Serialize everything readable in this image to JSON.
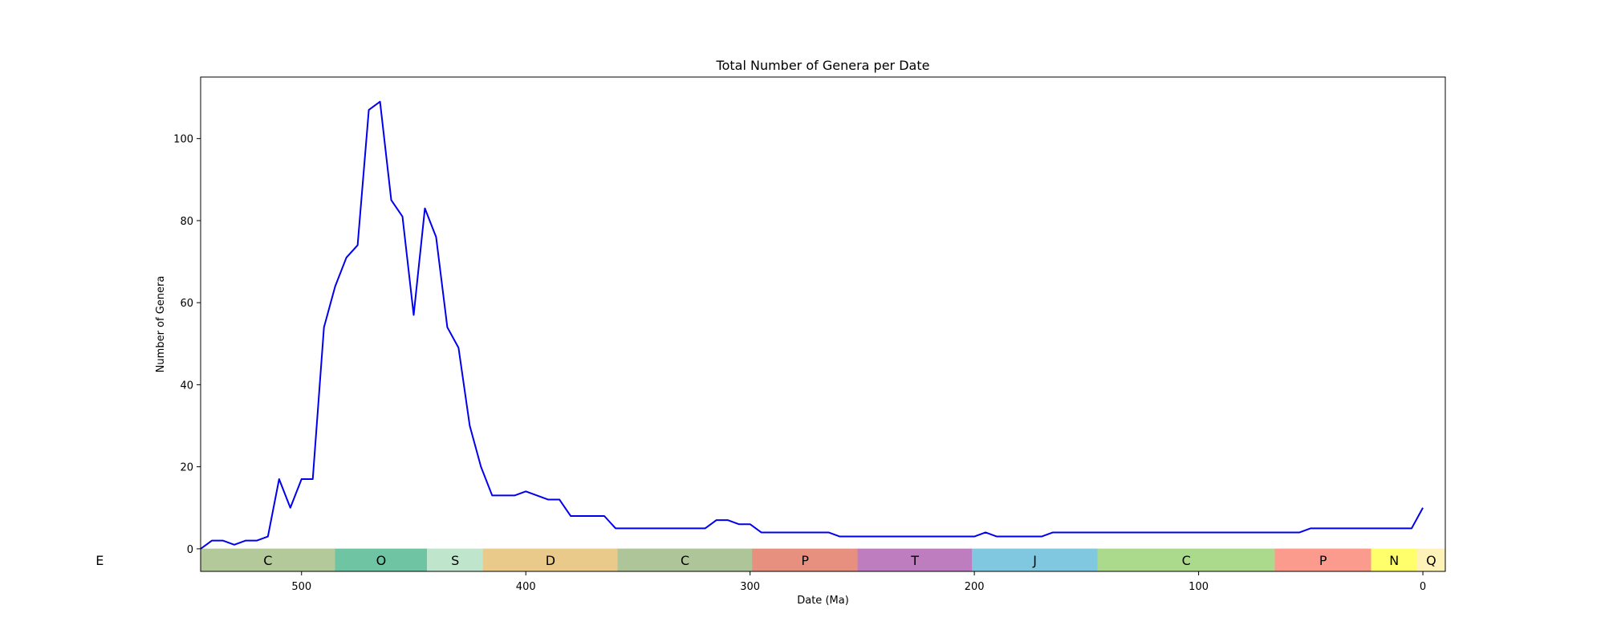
{
  "chart_data": {
    "type": "line",
    "title": "Total Number of Genera per Date",
    "xlabel": "Date (Ma)",
    "ylabel": "Number of Genera",
    "xlim": [
      545,
      -10
    ],
    "ylim": [
      -5.5,
      115
    ],
    "xticks": [
      500,
      400,
      300,
      200,
      100,
      0
    ],
    "yticks": [
      0,
      20,
      40,
      60,
      80,
      100
    ],
    "grid": false,
    "line_color": "#0000ee",
    "series": [
      {
        "name": "",
        "x": [
          545,
          540,
          535,
          530,
          525,
          520,
          515,
          510,
          505,
          500,
          495,
          490,
          485,
          480,
          475,
          470,
          465,
          460,
          455,
          450,
          445,
          440,
          435,
          430,
          425,
          420,
          415,
          410,
          405,
          400,
          395,
          390,
          385,
          380,
          375,
          370,
          365,
          360,
          355,
          350,
          345,
          340,
          335,
          330,
          325,
          320,
          315,
          310,
          305,
          300,
          295,
          290,
          285,
          280,
          275,
          270,
          265,
          260,
          255,
          250,
          245,
          240,
          235,
          230,
          225,
          220,
          215,
          210,
          205,
          200,
          195,
          190,
          185,
          180,
          175,
          170,
          165,
          160,
          155,
          150,
          145,
          140,
          135,
          130,
          125,
          120,
          115,
          110,
          105,
          100,
          95,
          90,
          85,
          80,
          75,
          70,
          65,
          60,
          55,
          50,
          45,
          40,
          35,
          30,
          25,
          20,
          15,
          10,
          5,
          0
        ],
        "values": [
          0,
          2,
          2,
          1,
          2,
          2,
          3,
          17,
          10,
          17,
          17,
          54,
          64,
          71,
          74,
          107,
          109,
          85,
          81,
          57,
          83,
          76,
          54,
          49,
          30,
          20,
          13,
          13,
          13,
          14,
          13,
          12,
          12,
          8,
          8,
          8,
          8,
          5,
          5,
          5,
          5,
          5,
          5,
          5,
          5,
          5,
          7,
          7,
          6,
          6,
          4,
          4,
          4,
          4,
          4,
          4,
          4,
          3,
          3,
          3,
          3,
          3,
          3,
          3,
          3,
          3,
          3,
          3,
          3,
          3,
          4,
          3,
          3,
          3,
          3,
          3,
          4,
          4,
          4,
          4,
          4,
          4,
          4,
          4,
          4,
          4,
          4,
          4,
          4,
          4,
          4,
          4,
          4,
          4,
          4,
          4,
          4,
          4,
          4,
          5,
          5,
          5,
          5,
          5,
          5,
          5,
          5,
          5,
          5,
          10
        ]
      }
    ],
    "band_ylim": [
      -5.5,
      0
    ],
    "periods": [
      {
        "label": "E",
        "start": 635,
        "end": 545,
        "color": "#ffffff"
      },
      {
        "label": "C",
        "start": 545,
        "end": 485,
        "color": "#b4c99a"
      },
      {
        "label": "O",
        "start": 485,
        "end": 444,
        "color": "#6fc4a4"
      },
      {
        "label": "S",
        "start": 444,
        "end": 419,
        "color": "#bfe5cc"
      },
      {
        "label": "D",
        "start": 419,
        "end": 359,
        "color": "#e9ca8a"
      },
      {
        "label": "C",
        "start": 359,
        "end": 299,
        "color": "#aec59a"
      },
      {
        "label": "P",
        "start": 299,
        "end": 252,
        "color": "#e8907f"
      },
      {
        "label": "T",
        "start": 252,
        "end": 201,
        "color": "#be7dbf"
      },
      {
        "label": "J",
        "start": 201,
        "end": 145,
        "color": "#80c7e0"
      },
      {
        "label": "C",
        "start": 145,
        "end": 66,
        "color": "#acda8c"
      },
      {
        "label": "P",
        "start": 66,
        "end": 23,
        "color": "#fb9b8d"
      },
      {
        "label": "N",
        "start": 23,
        "end": 2.6,
        "color": "#feff6a"
      },
      {
        "label": "Q",
        "start": 2.6,
        "end": -10,
        "color": "#fff2b8"
      }
    ]
  }
}
